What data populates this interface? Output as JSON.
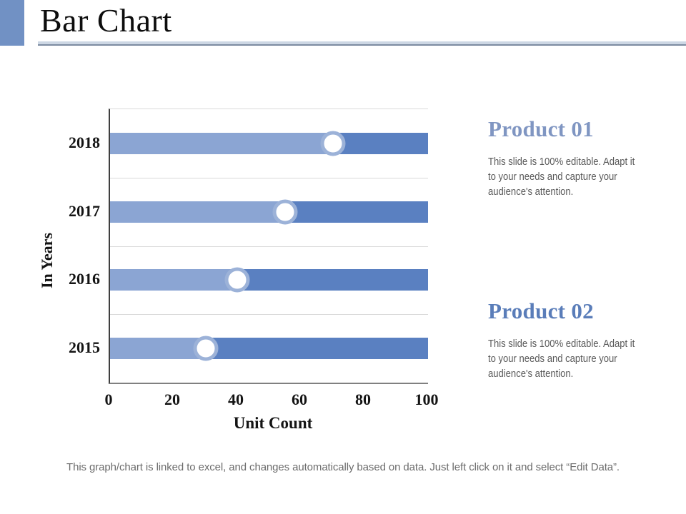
{
  "slide": {
    "title": "Bar Chart",
    "footnote": "This graph/chart is linked to excel, and changes automatically based on data. Just left click on it and select “Edit Data”."
  },
  "chart_data": {
    "type": "bar",
    "orientation": "horizontal",
    "title": "",
    "xlabel": "Unit Count",
    "ylabel": "In Years",
    "xlim": [
      0,
      100
    ],
    "xticks": [
      0,
      20,
      40,
      60,
      80,
      100
    ],
    "grid": "horizontal band separators, light gray",
    "legend": "none",
    "categories_top_to_bottom": [
      "2018",
      "2017",
      "2016",
      "2015"
    ],
    "series": [
      {
        "name": "light-segment",
        "color": "#8ba5d3",
        "values": [
          70,
          55,
          40,
          30
        ]
      },
      {
        "name": "dark-segment",
        "color": "#5a80c1",
        "values": [
          30,
          45,
          60,
          70
        ]
      }
    ],
    "markers": {
      "shape": "circle",
      "fill": "#ffffff",
      "ring": "#9cb2d8",
      "positions": [
        70,
        55,
        40,
        30
      ]
    }
  },
  "products": [
    {
      "title": "Product 01",
      "color": "#8096c2",
      "body": "This slide is 100% editable. Adapt it\nto your needs and capture your\naudience's attention."
    },
    {
      "title": "Product 02",
      "color": "#5a7db9",
      "body": "This slide is 100% editable. Adapt it\nto your needs and capture your\naudience's attention."
    }
  ],
  "colors": {
    "accent_rect": "#7191c4",
    "divider_light": "#cdd7e4",
    "divider_dark": "#7c8ba1",
    "axis_left": "#3f3f3f",
    "axis_bottom": "#808080",
    "gridline": "#d9d9d9",
    "tick_text": "#141414",
    "body_text": "#595959",
    "footnote_text": "#6c6c6c"
  }
}
